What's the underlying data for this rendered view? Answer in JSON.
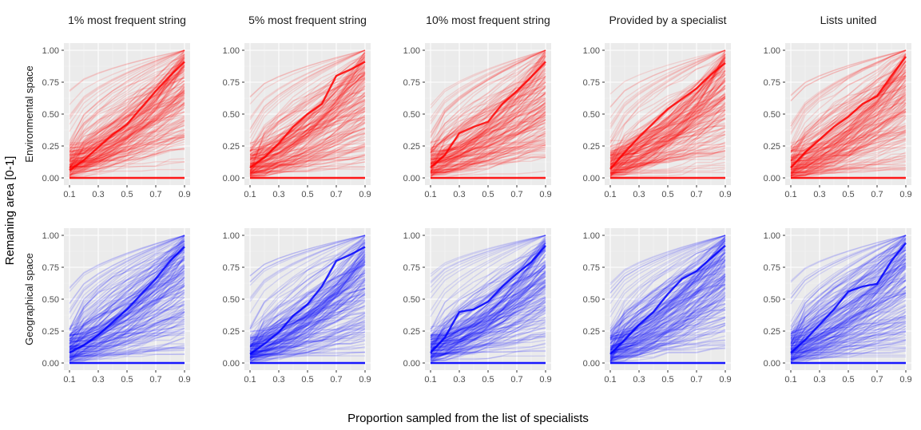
{
  "chart_data": {
    "type": "line",
    "facet_layout": "grid 2 rows x 5 columns",
    "column_titles": [
      "1% most frequent string",
      "5% most frequent string",
      "10% most frequent string",
      "Provided by a specialist",
      "Lists united"
    ],
    "row_labels": [
      "Environmental space",
      "Geographical space"
    ],
    "xlabel": "Proportion sampled from the list of specialists",
    "ylabel": "Remaning area [0-1]",
    "x_ticks": [
      "0.1",
      "0.3",
      "0.5",
      "0.7",
      "0.9"
    ],
    "y_ticks": [
      "0.00",
      "0.25",
      "0.50",
      "0.75",
      "1.00"
    ],
    "xlim": [
      0.1,
      0.9
    ],
    "ylim": [
      0,
      1
    ],
    "x": [
      0.1,
      0.2,
      0.3,
      0.4,
      0.5,
      0.6,
      0.7,
      0.8,
      0.9
    ],
    "grid": true,
    "panel_background": "#ebebeb",
    "row_colors": [
      "#ff0000",
      "#0000ff"
    ],
    "panels": [
      {
        "row": 0,
        "col": 0,
        "highlight": [
          0.06,
          0.14,
          0.24,
          0.34,
          0.42,
          0.55,
          0.68,
          0.8,
          0.91
        ]
      },
      {
        "row": 0,
        "col": 1,
        "highlight": [
          0.08,
          0.16,
          0.27,
          0.4,
          0.5,
          0.58,
          0.8,
          0.85,
          0.91
        ]
      },
      {
        "row": 0,
        "col": 2,
        "highlight": [
          0.08,
          0.18,
          0.35,
          0.4,
          0.44,
          0.58,
          0.68,
          0.79,
          0.91
        ]
      },
      {
        "row": 0,
        "col": 3,
        "highlight": [
          0.07,
          0.2,
          0.32,
          0.43,
          0.54,
          0.62,
          0.7,
          0.81,
          0.9
        ]
      },
      {
        "row": 0,
        "col": 4,
        "highlight": [
          0.08,
          0.2,
          0.3,
          0.4,
          0.48,
          0.58,
          0.64,
          0.8,
          0.95
        ]
      },
      {
        "row": 1,
        "col": 0,
        "highlight": [
          0.08,
          0.14,
          0.22,
          0.32,
          0.42,
          0.54,
          0.66,
          0.8,
          0.91
        ]
      },
      {
        "row": 1,
        "col": 1,
        "highlight": [
          0.07,
          0.15,
          0.24,
          0.37,
          0.46,
          0.6,
          0.8,
          0.85,
          0.91
        ]
      },
      {
        "row": 1,
        "col": 2,
        "highlight": [
          0.08,
          0.2,
          0.4,
          0.42,
          0.48,
          0.6,
          0.7,
          0.79,
          0.92
        ]
      },
      {
        "row": 1,
        "col": 3,
        "highlight": [
          0.07,
          0.18,
          0.3,
          0.4,
          0.54,
          0.66,
          0.72,
          0.82,
          0.92
        ]
      },
      {
        "row": 1,
        "col": 4,
        "highlight": [
          0.08,
          0.18,
          0.3,
          0.42,
          0.56,
          0.6,
          0.62,
          0.8,
          0.94
        ]
      }
    ]
  }
}
